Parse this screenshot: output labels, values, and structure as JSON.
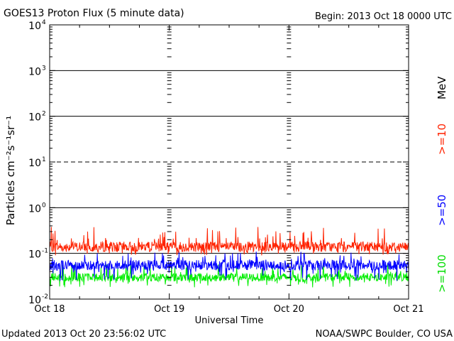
{
  "chart_data": {
    "type": "line",
    "title": "GOES13 Proton Flux (5 minute data)",
    "begin_label": "Begin: 2013 Oct 18 0000 UTC",
    "xlabel": "Universal Time",
    "ylabel": "Particles cm⁻²s⁻¹sr⁻¹",
    "x_ticks": [
      "Oct 18",
      "Oct 19",
      "Oct 20",
      "Oct 21"
    ],
    "xlim_days": [
      0,
      3
    ],
    "y_scale": "log",
    "ylim": [
      0.01,
      10000
    ],
    "y_ticks": [
      {
        "base": "10",
        "exp": "-2"
      },
      {
        "base": "10",
        "exp": "-1"
      },
      {
        "base": "10",
        "exp": "0"
      },
      {
        "base": "10",
        "exp": "1"
      },
      {
        "base": "10",
        "exp": "2"
      },
      {
        "base": "10",
        "exp": "3"
      },
      {
        "base": "10",
        "exp": "4"
      }
    ],
    "threshold_line": 10,
    "series": [
      {
        "name": ">=10 MeV",
        "color": "#ff2200",
        "typical": 0.14,
        "range": [
          0.09,
          0.38
        ]
      },
      {
        "name": ">=50",
        "color": "#0000ff",
        "typical": 0.055,
        "range": [
          0.025,
          0.11
        ]
      },
      {
        "name": ">=100",
        "color": "#00ee00",
        "typical": 0.03,
        "range": [
          0.018,
          0.06
        ]
      }
    ]
  },
  "legend": {
    "p10": ">=10",
    "p10_unit": "MeV",
    "p50": ">=50",
    "p100": ">=100"
  },
  "footer": {
    "updated": "Updated 2013 Oct 20 23:56:02 UTC",
    "source": "NOAA/SWPC Boulder, CO USA"
  }
}
